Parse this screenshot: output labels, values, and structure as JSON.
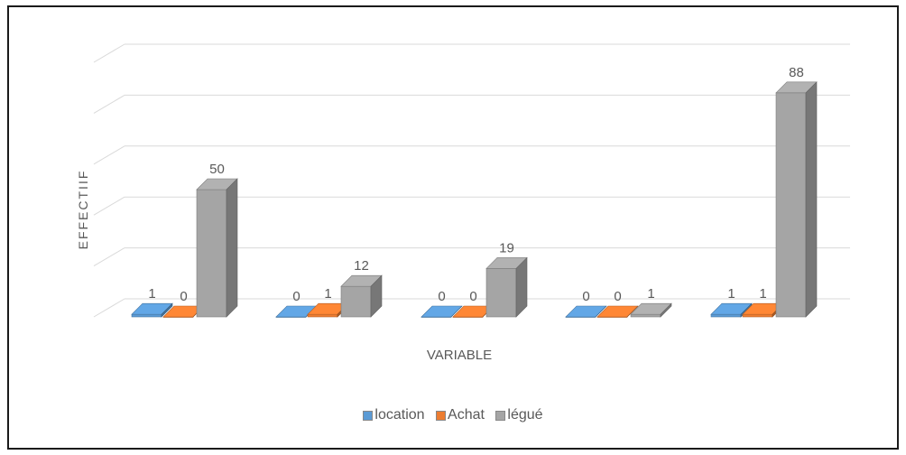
{
  "chart_data": {
    "type": "bar",
    "style": "3d-clustered-column",
    "categories": [
      "",
      "",
      "",
      "",
      ""
    ],
    "series": [
      {
        "name": "location",
        "values": [
          1,
          0,
          0,
          0,
          1
        ],
        "color": "#5B9BD5"
      },
      {
        "name": "Achat",
        "values": [
          0,
          1,
          0,
          0,
          1
        ],
        "color": "#ED7D31"
      },
      {
        "name": "légué",
        "values": [
          50,
          12,
          19,
          1,
          88
        ],
        "color": "#A5A5A5"
      }
    ],
    "title": "",
    "xlabel": "VARIABLE",
    "ylabel": "EFFECTIIF",
    "ylim": [
      0,
      100
    ],
    "grid": true,
    "legend_position": "bottom"
  }
}
